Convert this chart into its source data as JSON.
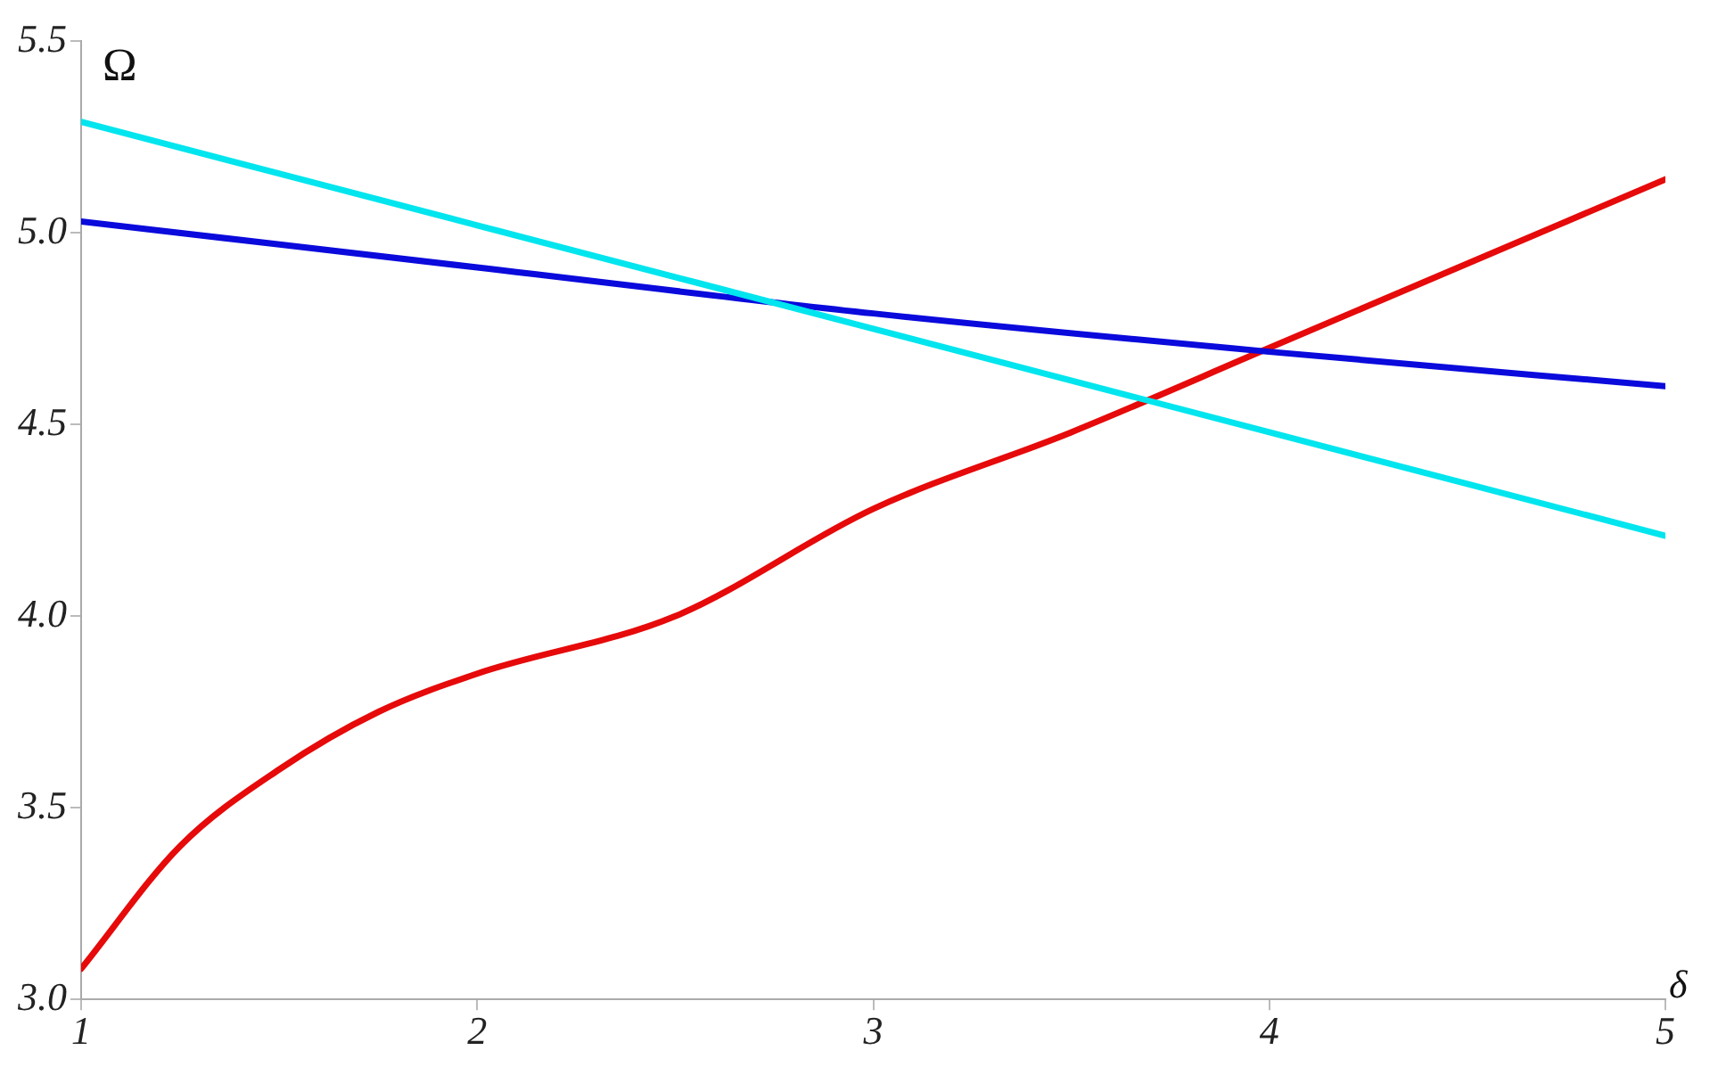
{
  "chart_data": {
    "type": "line",
    "xlabel": "δ",
    "ylabel": "Ω",
    "x": [
      1,
      1.25,
      1.5,
      1.75,
      2,
      2.5,
      3,
      3.5,
      4,
      4.5,
      5
    ],
    "series": [
      {
        "color": "#00e5ee",
        "x": [
          1,
          2,
          3,
          4,
          5
        ],
        "values": [
          5.29,
          5.02,
          4.75,
          4.48,
          4.21
        ]
      },
      {
        "color": "#0a0adc",
        "x": [
          1,
          2,
          3,
          4,
          5
        ],
        "values": [
          5.03,
          4.91,
          4.79,
          4.69,
          4.6
        ]
      },
      {
        "color": "#e60a0a",
        "values": [
          3.08,
          3.4,
          3.6,
          3.75,
          3.85,
          4.0,
          4.28,
          4.48,
          4.7,
          4.92,
          5.14
        ]
      }
    ],
    "xlim": [
      1,
      5
    ],
    "xticks": [
      1,
      2,
      3,
      4,
      5
    ],
    "ylim": [
      3,
      5.5
    ],
    "yticks": [
      {
        "value": 3,
        "label": "3.0"
      },
      {
        "value": 3.5,
        "label": "3.5"
      },
      {
        "value": 4,
        "label": "4.0"
      },
      {
        "value": 4.5,
        "label": "4.5"
      },
      {
        "value": 5,
        "label": "5.0"
      },
      {
        "value": 5.5,
        "label": "5.5"
      }
    ],
    "grid": false,
    "legend": false,
    "marker": "none",
    "line_style": "solid"
  }
}
